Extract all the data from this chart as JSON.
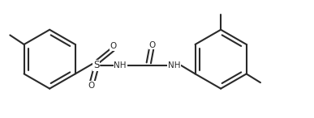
{
  "bg": "#ffffff",
  "lc": "#2a2a2a",
  "lw": 1.5,
  "fs": 8.0,
  "fig_w": 3.87,
  "fig_h": 1.46,
  "dpi": 100,
  "xlim": [
    0,
    10
  ],
  "ylim": [
    0,
    3.77
  ]
}
